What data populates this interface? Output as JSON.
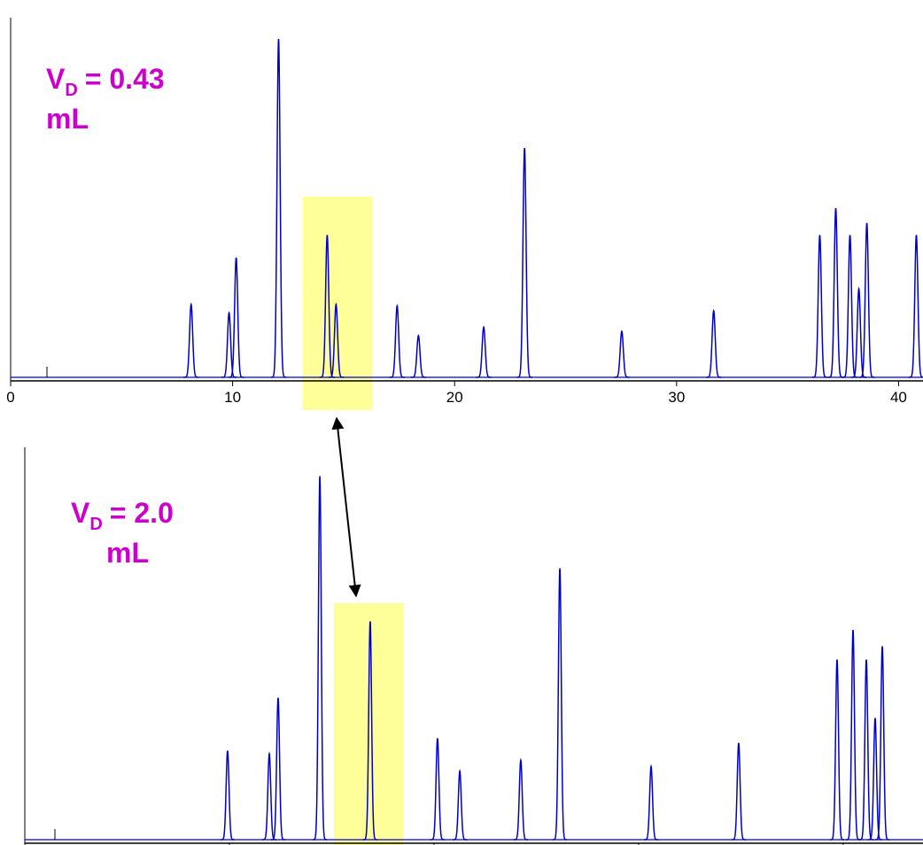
{
  "chart_data": [
    {
      "type": "peaks",
      "color": "#0000cc",
      "highlight_color": "#ffff99",
      "annotation": {
        "main": "V",
        "sub": "D",
        "tail": "= 0.43",
        "line2": "mL"
      },
      "highlight": [
        13.15,
        16.3
      ],
      "x": [
        8.13,
        9.84,
        10.16,
        12.07,
        14.26,
        14.66,
        17.41,
        18.37,
        21.31,
        23.15,
        27.53,
        31.67,
        36.45,
        37.17,
        37.81,
        38.21,
        38.57,
        40.8
      ],
      "values": [
        1.03,
        0.91,
        1.69,
        4.78,
        2.01,
        1.03,
        1.01,
        0.59,
        0.71,
        3.24,
        0.65,
        0.94,
        2.01,
        2.39,
        2.01,
        1.25,
        2.18,
        2.01
      ],
      "xlim": [
        0,
        41.1
      ],
      "xticks": [
        0,
        10,
        20,
        30,
        40
      ],
      "ylim": [
        0,
        5.08
      ]
    },
    {
      "type": "peaks",
      "color": "#0000cc",
      "highlight_color": "#ffff99",
      "annotation": {
        "main": "V",
        "sub": "D",
        "tail": "= 2.0",
        "line2": "mL"
      },
      "highlight": [
        15.1,
        18.5
      ],
      "x": [
        9.91,
        11.95,
        12.38,
        14.42,
        16.88,
        20.17,
        21.26,
        24.24,
        26.15,
        30.61,
        34.89,
        39.7,
        40.48,
        41.13,
        41.56,
        41.91
      ],
      "values": [
        1.14,
        1.1,
        1.82,
        4.66,
        2.8,
        1.3,
        0.88,
        1.02,
        3.48,
        0.94,
        1.24,
        2.31,
        2.69,
        2.31,
        1.56,
        2.48
      ],
      "xlim": [
        0,
        43.9
      ],
      "xticks": [
        0,
        10,
        20,
        30,
        40
      ],
      "ylim": [
        0,
        5.03
      ]
    }
  ]
}
